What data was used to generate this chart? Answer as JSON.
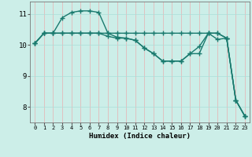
{
  "xlabel": "Humidex (Indice chaleur)",
  "bg_color": "#cceee8",
  "line_color": "#1a7a6e",
  "grid_color_v": "#e8b0b0",
  "grid_color_h": "#aaddd8",
  "xlim": [
    -0.5,
    23.5
  ],
  "ylim": [
    7.5,
    11.4
  ],
  "yticks": [
    8,
    9,
    10,
    11
  ],
  "xticks": [
    0,
    1,
    2,
    3,
    4,
    5,
    6,
    7,
    8,
    9,
    10,
    11,
    12,
    13,
    14,
    15,
    16,
    17,
    18,
    19,
    20,
    21,
    22,
    23
  ],
  "series": [
    [
      10.05,
      10.38,
      10.38,
      10.88,
      11.05,
      11.1,
      11.1,
      11.05,
      10.38,
      10.25,
      10.22,
      10.15,
      9.9,
      9.72,
      9.48,
      9.48,
      9.48,
      9.72,
      9.72,
      10.38,
      10.38,
      10.22,
      8.22,
      7.7
    ],
    [
      10.05,
      10.38,
      10.38,
      10.38,
      10.38,
      10.38,
      10.38,
      10.38,
      10.38,
      10.38,
      10.38,
      10.38,
      10.38,
      10.38,
      10.38,
      10.38,
      10.38,
      10.38,
      10.38,
      10.38,
      10.38,
      10.22,
      8.22,
      7.7
    ],
    [
      10.05,
      10.38,
      10.38,
      10.38,
      10.38,
      10.38,
      10.38,
      10.38,
      10.28,
      10.22,
      10.22,
      10.15,
      9.9,
      9.72,
      9.48,
      9.48,
      9.48,
      9.72,
      9.95,
      10.38,
      10.18,
      10.22,
      8.22,
      7.7
    ]
  ],
  "marker": "+",
  "markersize": 4,
  "linewidth": 1.0
}
